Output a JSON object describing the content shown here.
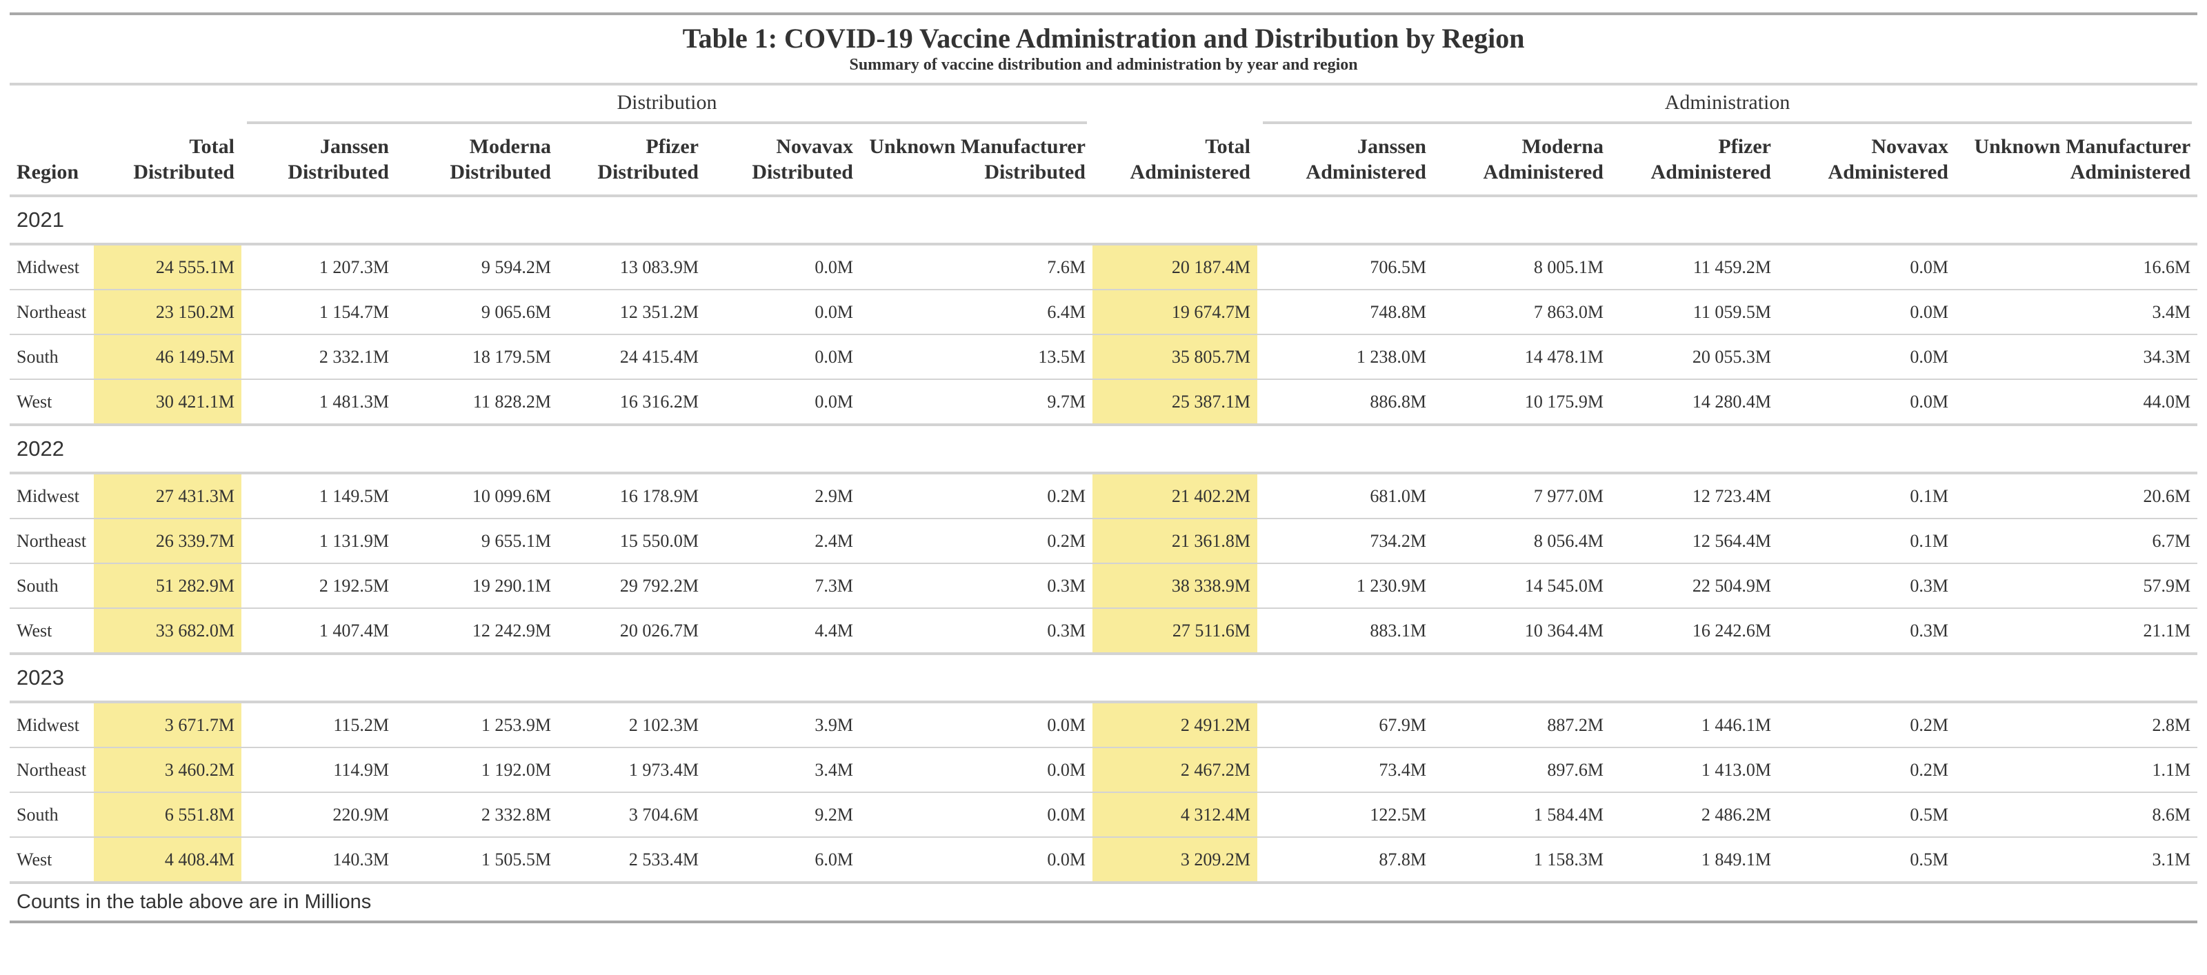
{
  "title": "Table 1: COVID-19 Vaccine Administration and Distribution by Region",
  "subtitle": "Summary of vaccine distribution and administration by year and region",
  "spanners": [
    "Distribution",
    "Administration"
  ],
  "columns": [
    "Region",
    "Total Distributed",
    "Janssen Distributed",
    "Moderna Distributed",
    "Pfizer Distributed",
    "Novavax Distributed",
    "Unknown Manufacturer Distributed",
    "Total Administered",
    "Janssen Administered",
    "Moderna Administered",
    "Pfizer Administered",
    "Novavax Administered",
    "Unknown Manufacturer Administered"
  ],
  "groups": [
    {
      "label": "2021",
      "rows": [
        [
          "Midwest",
          "24 555.1M",
          "1 207.3M",
          "9 594.2M",
          "13 083.9M",
          "0.0M",
          "7.6M",
          "20 187.4M",
          "706.5M",
          "8 005.1M",
          "11 459.2M",
          "0.0M",
          "16.6M"
        ],
        [
          "Northeast",
          "23 150.2M",
          "1 154.7M",
          "9 065.6M",
          "12 351.2M",
          "0.0M",
          "6.4M",
          "19 674.7M",
          "748.8M",
          "7 863.0M",
          "11 059.5M",
          "0.0M",
          "3.4M"
        ],
        [
          "South",
          "46 149.5M",
          "2 332.1M",
          "18 179.5M",
          "24 415.4M",
          "0.0M",
          "13.5M",
          "35 805.7M",
          "1 238.0M",
          "14 478.1M",
          "20 055.3M",
          "0.0M",
          "34.3M"
        ],
        [
          "West",
          "30 421.1M",
          "1 481.3M",
          "11 828.2M",
          "16 316.2M",
          "0.0M",
          "9.7M",
          "25 387.1M",
          "886.8M",
          "10 175.9M",
          "14 280.4M",
          "0.0M",
          "44.0M"
        ]
      ]
    },
    {
      "label": "2022",
      "rows": [
        [
          "Midwest",
          "27 431.3M",
          "1 149.5M",
          "10 099.6M",
          "16 178.9M",
          "2.9M",
          "0.2M",
          "21 402.2M",
          "681.0M",
          "7 977.0M",
          "12 723.4M",
          "0.1M",
          "20.6M"
        ],
        [
          "Northeast",
          "26 339.7M",
          "1 131.9M",
          "9 655.1M",
          "15 550.0M",
          "2.4M",
          "0.2M",
          "21 361.8M",
          "734.2M",
          "8 056.4M",
          "12 564.4M",
          "0.1M",
          "6.7M"
        ],
        [
          "South",
          "51 282.9M",
          "2 192.5M",
          "19 290.1M",
          "29 792.2M",
          "7.3M",
          "0.3M",
          "38 338.9M",
          "1 230.9M",
          "14 545.0M",
          "22 504.9M",
          "0.3M",
          "57.9M"
        ],
        [
          "West",
          "33 682.0M",
          "1 407.4M",
          "12 242.9M",
          "20 026.7M",
          "4.4M",
          "0.3M",
          "27 511.6M",
          "883.1M",
          "10 364.4M",
          "16 242.6M",
          "0.3M",
          "21.1M"
        ]
      ]
    },
    {
      "label": "2023",
      "rows": [
        [
          "Midwest",
          "3 671.7M",
          "115.2M",
          "1 253.9M",
          "2 102.3M",
          "3.9M",
          "0.0M",
          "2 491.2M",
          "67.9M",
          "887.2M",
          "1 446.1M",
          "0.2M",
          "2.8M"
        ],
        [
          "Northeast",
          "3 460.2M",
          "114.9M",
          "1 192.0M",
          "1 973.4M",
          "3.4M",
          "0.0M",
          "2 467.2M",
          "73.4M",
          "897.6M",
          "1 413.0M",
          "0.2M",
          "1.1M"
        ],
        [
          "South",
          "6 551.8M",
          "220.9M",
          "2 332.8M",
          "3 704.6M",
          "9.2M",
          "0.0M",
          "4 312.4M",
          "122.5M",
          "1 584.4M",
          "2 486.2M",
          "0.5M",
          "8.6M"
        ],
        [
          "West",
          "4 408.4M",
          "140.3M",
          "1 505.5M",
          "2 533.4M",
          "6.0M",
          "0.0M",
          "3 209.2M",
          "87.8M",
          "1 158.3M",
          "1 849.1M",
          "0.5M",
          "3.1M"
        ]
      ]
    }
  ],
  "footnote": "Counts in the table above are in Millions"
}
